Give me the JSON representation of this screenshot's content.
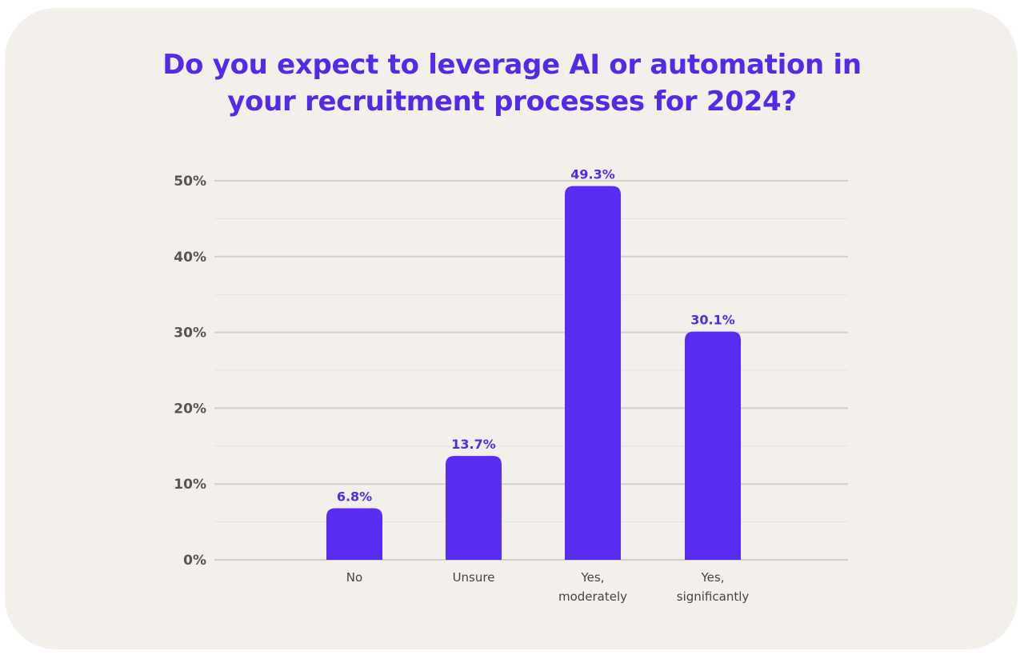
{
  "chart_data": {
    "type": "bar",
    "title": "Do you expect to leverage AI or automation in your recruitment processes for 2024?",
    "title_lines": [
      "Do you expect to leverage AI or automation in",
      "your recruitment processes for 2024?"
    ],
    "categories": [
      [
        "No"
      ],
      [
        "Unsure"
      ],
      [
        "Yes,",
        "moderately"
      ],
      [
        "Yes,",
        "significantly"
      ]
    ],
    "values": [
      6.8,
      13.7,
      49.3,
      30.1
    ],
    "data_labels": [
      "6.8%",
      "13.7%",
      "49.3%",
      "30.1%"
    ],
    "y_ticks": [
      0,
      10,
      20,
      30,
      40,
      50
    ],
    "y_tick_labels": [
      "0%",
      "10%",
      "20%",
      "30%",
      "40%",
      "50%"
    ],
    "ylim": [
      0,
      50
    ],
    "grid": true,
    "xlabel": "",
    "ylabel": "",
    "colors": {
      "bar": "#5a2bf0",
      "title": "#5529e8",
      "data_label": "#5529e8",
      "grid": "#d4d1cd",
      "grid_minor": "#e6e3df",
      "background": "#f3f0ec"
    }
  }
}
